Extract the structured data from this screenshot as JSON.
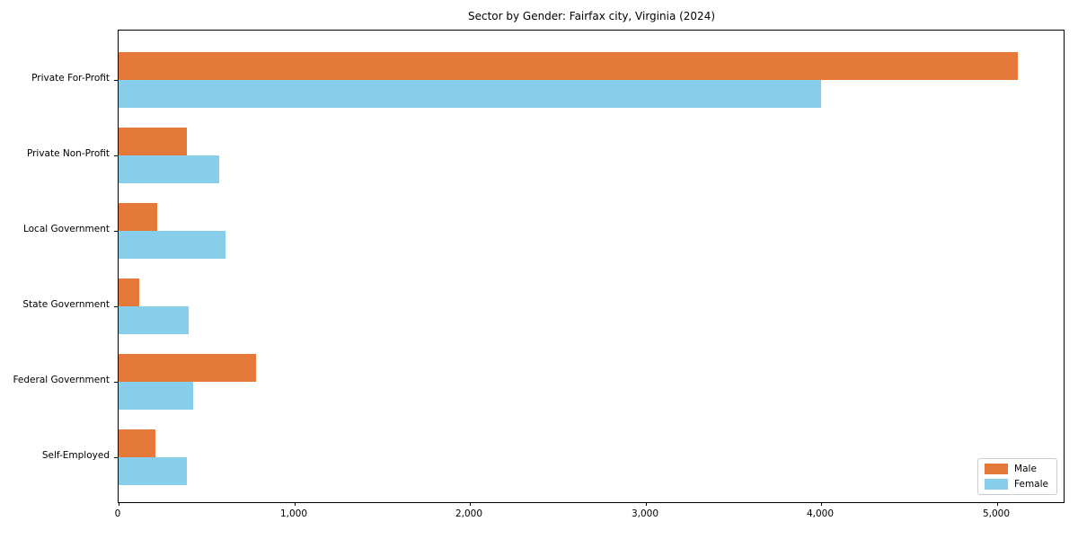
{
  "chart_data": {
    "type": "bar",
    "orientation": "horizontal",
    "title": "Sector by Gender: Fairfax city, Virginia (2024)",
    "categories": [
      "Private For-Profit",
      "Private Non-Profit",
      "Local Government",
      "State Government",
      "Federal Government",
      "Self-Employed"
    ],
    "series": [
      {
        "name": "Male",
        "color": "#e5793a",
        "values": [
          5120,
          390,
          220,
          120,
          785,
          210
        ]
      },
      {
        "name": "Female",
        "color": "#87ceeb",
        "values": [
          4000,
          575,
          610,
          400,
          425,
          390
        ]
      }
    ],
    "xlabel": "",
    "ylabel": "",
    "x_ticks": [
      0,
      1000,
      2000,
      3000,
      4000,
      5000
    ],
    "x_tick_labels": [
      "0",
      "1,000",
      "2,000",
      "3,000",
      "4,000",
      "5,000"
    ],
    "xlim": [
      0,
      5380
    ],
    "grid": false,
    "legend_position": "lower right",
    "colors": {
      "male": "#e5793a",
      "female": "#87ceeb",
      "axis": "#000000",
      "background": "#ffffff"
    }
  }
}
